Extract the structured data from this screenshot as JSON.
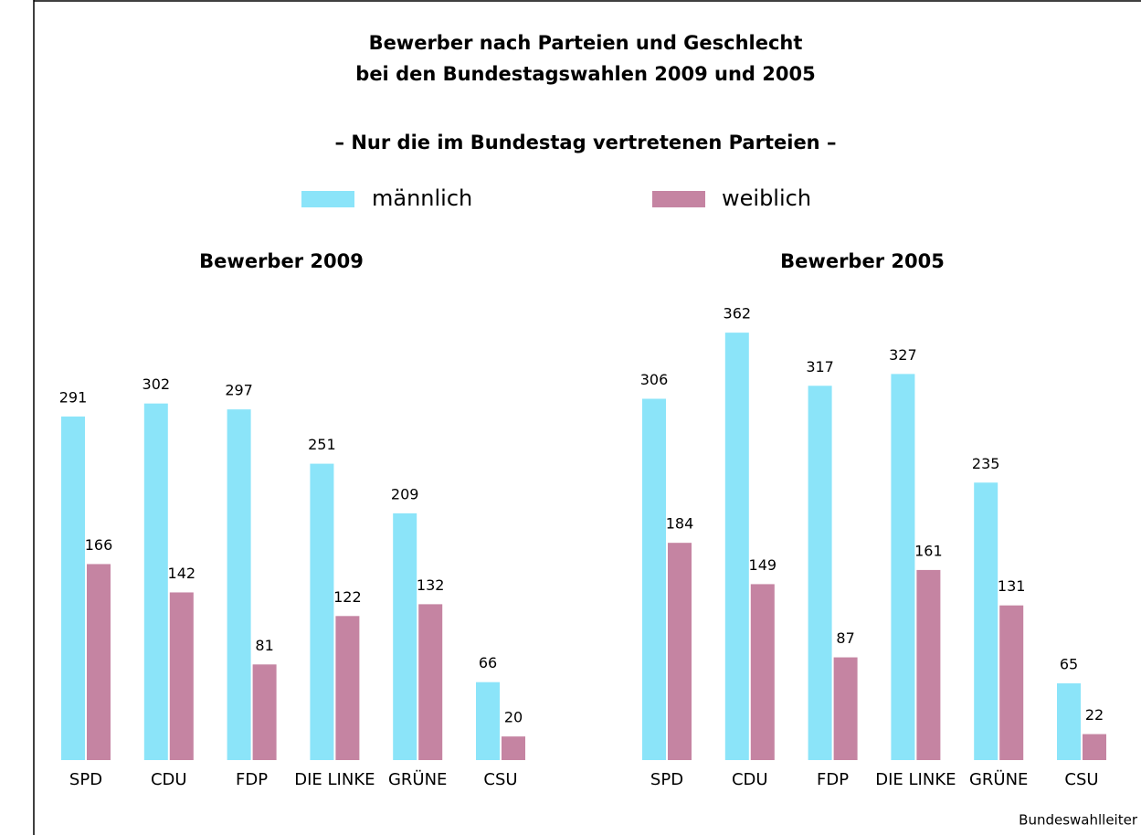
{
  "title": [
    "Bewerber nach Parteien und Geschlecht",
    "bei den Bundestagswahlen 2009 und 2005"
  ],
  "subtitle": "– Nur die im Bundestag vertretenen Parteien –",
  "source": "Bundeswahlleiter",
  "chart_data": [
    {
      "type": "bar",
      "title": "Bewerber 2009",
      "categories": [
        "SPD",
        "CDU",
        "FDP",
        "DIE LINKE",
        "GRÜNE",
        "CSU"
      ],
      "series": [
        {
          "name": "männlich",
          "color": "#8be4f9",
          "values": [
            291,
            302,
            297,
            251,
            209,
            66
          ]
        },
        {
          "name": "weiblich",
          "color": "#c584a2",
          "values": [
            166,
            142,
            81,
            122,
            132,
            20
          ]
        }
      ]
    },
    {
      "type": "bar",
      "title": "Bewerber 2005",
      "categories": [
        "SPD",
        "CDU",
        "FDP",
        "DIE LINKE",
        "GRÜNE",
        "CSU"
      ],
      "series": [
        {
          "name": "männlich",
          "color": "#8be4f9",
          "values": [
            306,
            362,
            317,
            327,
            235,
            65
          ]
        },
        {
          "name": "weiblich",
          "color": "#c584a2",
          "values": [
            184,
            149,
            87,
            161,
            131,
            22
          ]
        }
      ]
    }
  ]
}
